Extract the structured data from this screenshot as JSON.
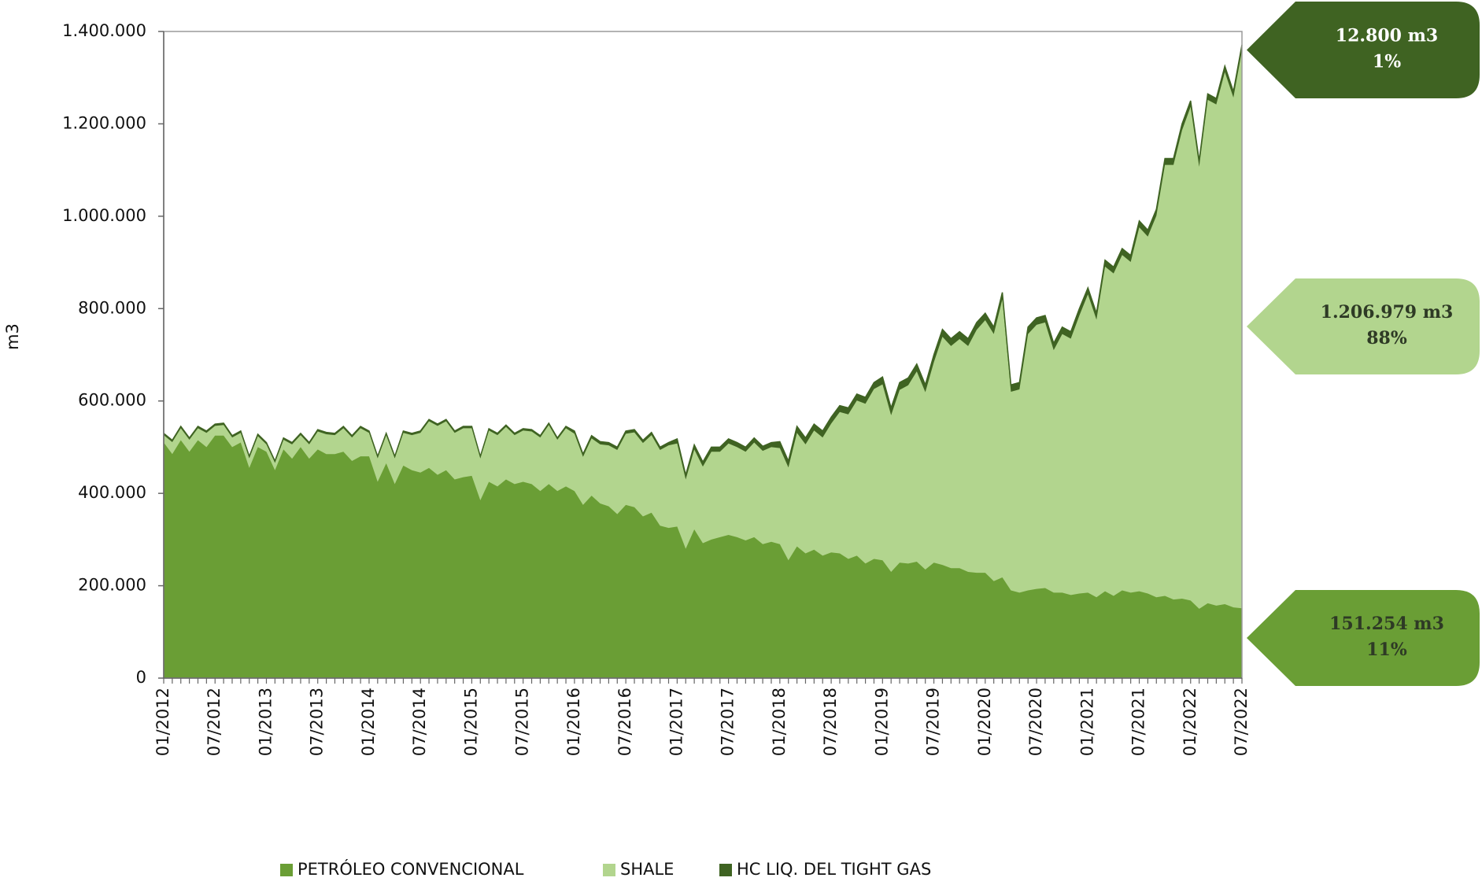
{
  "chart_data": {
    "type": "stacked-area",
    "y_label": "m3",
    "categories": [
      "01/2012",
      null,
      null,
      null,
      null,
      null,
      "07/2012",
      null,
      null,
      null,
      null,
      null,
      "01/2013",
      null,
      null,
      null,
      null,
      null,
      "07/2013",
      null,
      null,
      null,
      null,
      null,
      "01/2014",
      null,
      null,
      null,
      null,
      null,
      "07/2014",
      null,
      null,
      null,
      null,
      null,
      "01/2015",
      null,
      null,
      null,
      null,
      null,
      "07/2015",
      null,
      null,
      null,
      null,
      null,
      "01/2016",
      null,
      null,
      null,
      null,
      null,
      "07/2016",
      null,
      null,
      null,
      null,
      null,
      "01/2017",
      null,
      null,
      null,
      null,
      null,
      "07/2017",
      null,
      null,
      null,
      null,
      null,
      "01/2018",
      null,
      null,
      null,
      null,
      null,
      "07/2018",
      null,
      null,
      null,
      null,
      null,
      "01/2019",
      null,
      null,
      null,
      null,
      null,
      "07/2019",
      null,
      null,
      null,
      null,
      null,
      "01/2020",
      null,
      null,
      null,
      null,
      null,
      "07/2020",
      null,
      null,
      null,
      null,
      null,
      "01/2021",
      null,
      null,
      null,
      null,
      null,
      "07/2021",
      null,
      null,
      null,
      null,
      null,
      "01/2022",
      null,
      null,
      null,
      null,
      null,
      "07/2022"
    ],
    "series": [
      {
        "name": "PETRÓLEO CONVENCIONAL",
        "color": "#6a9e35",
        "values": [
          510000,
          485000,
          515000,
          490000,
          515000,
          500000,
          525000,
          525000,
          500000,
          510000,
          455000,
          500000,
          490000,
          450000,
          495000,
          475000,
          500000,
          475000,
          495000,
          485000,
          485000,
          490000,
          470000,
          480000,
          480000,
          425000,
          465000,
          420000,
          460000,
          450000,
          445000,
          455000,
          440000,
          450000,
          430000,
          435000,
          438000,
          385000,
          425000,
          415000,
          430000,
          420000,
          425000,
          420000,
          405000,
          420000,
          405000,
          415000,
          405000,
          375000,
          395000,
          378000,
          372000,
          355000,
          375000,
          370000,
          350000,
          358000,
          330000,
          325000,
          328000,
          280000,
          322000,
          292000,
          300000,
          305000,
          310000,
          305000,
          298000,
          305000,
          290000,
          295000,
          290000,
          255000,
          285000,
          270000,
          278000,
          265000,
          272000,
          270000,
          258000,
          265000,
          248000,
          258000,
          255000,
          230000,
          250000,
          248000,
          252000,
          235000,
          250000,
          245000,
          238000,
          238000,
          230000,
          228000,
          228000,
          210000,
          218000,
          190000,
          185000,
          190000,
          193000,
          195000,
          185000,
          185000,
          180000,
          183000,
          185000,
          175000,
          188000,
          178000,
          190000,
          185000,
          188000,
          183000,
          175000,
          178000,
          170000,
          172000,
          168000,
          150000,
          162000,
          157000,
          160000,
          153000,
          151254
        ]
      },
      {
        "name": "SHALE",
        "color": "#b2d58e",
        "values": [
          16000,
          26000,
          26000,
          26000,
          26000,
          31000,
          21000,
          23000,
          21000,
          21000,
          21000,
          24000,
          16000,
          16000,
          21000,
          31000,
          26000,
          31000,
          39000,
          43000,
          41000,
          51000,
          51000,
          61000,
          51000,
          51000,
          61000,
          56000,
          71000,
          76000,
          86000,
          101000,
          106000,
          106000,
          101000,
          106000,
          103000,
          91000,
          111000,
          111000,
          114000,
          106000,
          111000,
          114000,
          116000,
          128000,
          111000,
          126000,
          124000,
          104000,
          124000,
          128000,
          132000,
          139000,
          154000,
          162000,
          159000,
          168000,
          164000,
          179000,
          180000,
          150000,
          173000,
          166000,
          190000,
          185000,
          198000,
          195000,
          192000,
          205000,
          202000,
          205000,
          208000,
          201000,
          246000,
          236000,
          258000,
          256000,
          279000,
          306000,
          313000,
          336000,
          346000,
          368000,
          381000,
          339000,
          374000,
          386000,
          412000,
          384000,
          434000,
          494000,
          481000,
          496000,
          489000,
          526000,
          547000,
          535000,
          602000,
          430000,
          440000,
          555000,
          572000,
          575000,
          525000,
          560000,
          555000,
          602000,
          646000,
          601000,
          703000,
          698000,
          726000,
          716000,
          788000,
          773000,
          826000,
          933000,
          941000,
          1014000,
          1069000,
          957000,
          1090000,
          1085000,
          1152000,
          1104000,
          1206979
        ]
      },
      {
        "name": "HC LIQ. DEL TIGHT GAS",
        "color": "#3f6322",
        "values": [
          4000,
          4000,
          4000,
          4000,
          4000,
          4000,
          4000,
          4000,
          4000,
          4000,
          4000,
          4000,
          4000,
          4000,
          4000,
          4000,
          4000,
          4000,
          4000,
          4000,
          4000,
          4000,
          4000,
          4000,
          4000,
          4000,
          4000,
          4000,
          4000,
          4000,
          4000,
          4000,
          4000,
          4000,
          4000,
          4000,
          4000,
          4000,
          4000,
          4000,
          4000,
          4000,
          4000,
          4000,
          4000,
          4000,
          4000,
          4000,
          6000,
          6000,
          6000,
          6000,
          6000,
          6000,
          6000,
          6000,
          6000,
          6000,
          6000,
          6000,
          10000,
          10000,
          10000,
          10000,
          10000,
          10000,
          10000,
          10000,
          10000,
          10000,
          10000,
          10000,
          14000,
          14000,
          14000,
          14000,
          14000,
          14000,
          14000,
          14000,
          14000,
          14000,
          14000,
          14000,
          16000,
          16000,
          16000,
          16000,
          16000,
          16000,
          16000,
          16000,
          16000,
          16000,
          16000,
          16000,
          15000,
          15000,
          15000,
          15000,
          15000,
          15000,
          15000,
          15000,
          15000,
          15000,
          15000,
          15000,
          14000,
          14000,
          14000,
          14000,
          14000,
          14000,
          14000,
          14000,
          14000,
          14000,
          14000,
          14000,
          13000,
          13000,
          13000,
          13000,
          13000,
          13000,
          12800
        ]
      }
    ],
    "ylim": [
      0,
      1400000
    ],
    "yticks": [
      0,
      {
        "value": 200000,
        "label": "200.000"
      },
      {
        "value": 400000,
        "label": "400.000"
      },
      {
        "value": 600000,
        "label": "600.000"
      },
      {
        "value": 800000,
        "label": "800.000"
      },
      {
        "value": 1000000,
        "label": "1.000.000"
      },
      {
        "value": 1200000,
        "label": "1.200.000"
      },
      {
        "value": 1400000,
        "label": "1.400.000"
      }
    ],
    "legend": "bottom",
    "annotations": [
      {
        "lines": [
          "12.800 m3",
          "1%"
        ],
        "color": "#3f6322"
      },
      {
        "lines": [
          "1.206.979 m3",
          "88%"
        ],
        "color": "#b2d58e"
      },
      {
        "lines": [
          "151.254 m3",
          "11%"
        ],
        "color": "#6a9e35"
      }
    ]
  }
}
